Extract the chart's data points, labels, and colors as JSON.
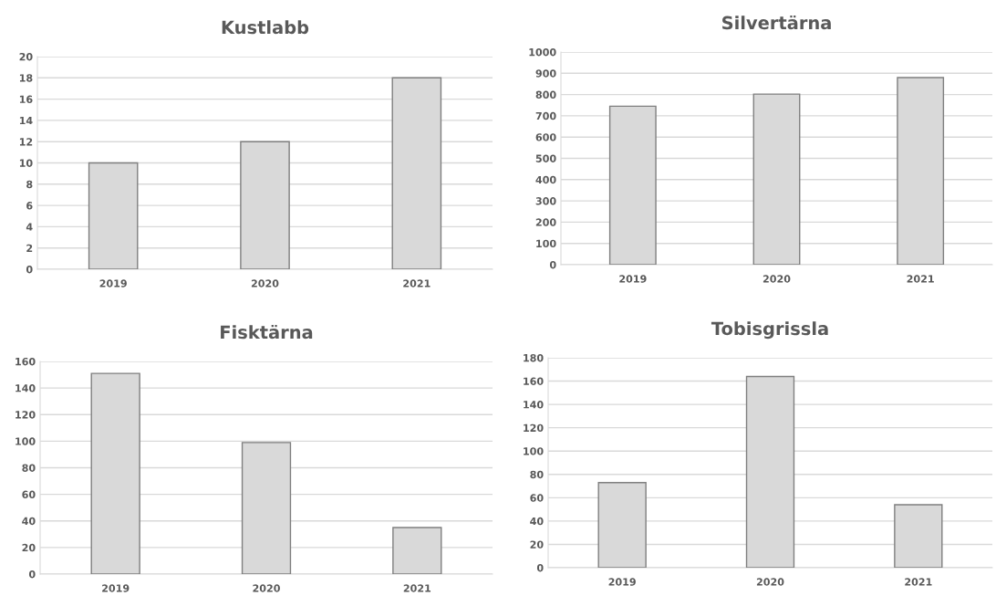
{
  "chart_data": [
    {
      "type": "bar",
      "title": "Kustlabb",
      "categories": [
        "2019",
        "2020",
        "2021"
      ],
      "values": [
        10,
        12,
        18
      ],
      "color": "#d9d9d9",
      "ylim": [
        0,
        20
      ],
      "yticks": [
        0,
        2,
        4,
        6,
        8,
        10,
        12,
        14,
        16,
        18,
        20
      ],
      "grid": "y"
    },
    {
      "type": "bar",
      "title": "Silvertärna",
      "categories": [
        "2019",
        "2020",
        "2021"
      ],
      "values": [
        745,
        802,
        880
      ],
      "color": "#d9d9d9",
      "ylim": [
        0,
        1000
      ],
      "yticks": [
        0,
        100,
        200,
        300,
        400,
        500,
        600,
        700,
        800,
        900,
        1000
      ],
      "grid": "y"
    },
    {
      "type": "bar",
      "title": "Fisktärna",
      "categories": [
        "2019",
        "2020",
        "2021"
      ],
      "values": [
        151,
        99,
        35
      ],
      "color": "#d9d9d9",
      "ylim": [
        0,
        160
      ],
      "yticks": [
        0,
        20,
        40,
        60,
        80,
        100,
        120,
        140,
        160
      ],
      "grid": "y"
    },
    {
      "type": "bar",
      "title": "Tobisgrissla",
      "categories": [
        "2019",
        "2020",
        "2021"
      ],
      "values": [
        73,
        164,
        54
      ],
      "color": "#d9d9d9",
      "ylim": [
        0,
        180
      ],
      "yticks": [
        0,
        20,
        40,
        60,
        80,
        100,
        120,
        140,
        160,
        180
      ],
      "grid": "y"
    }
  ]
}
